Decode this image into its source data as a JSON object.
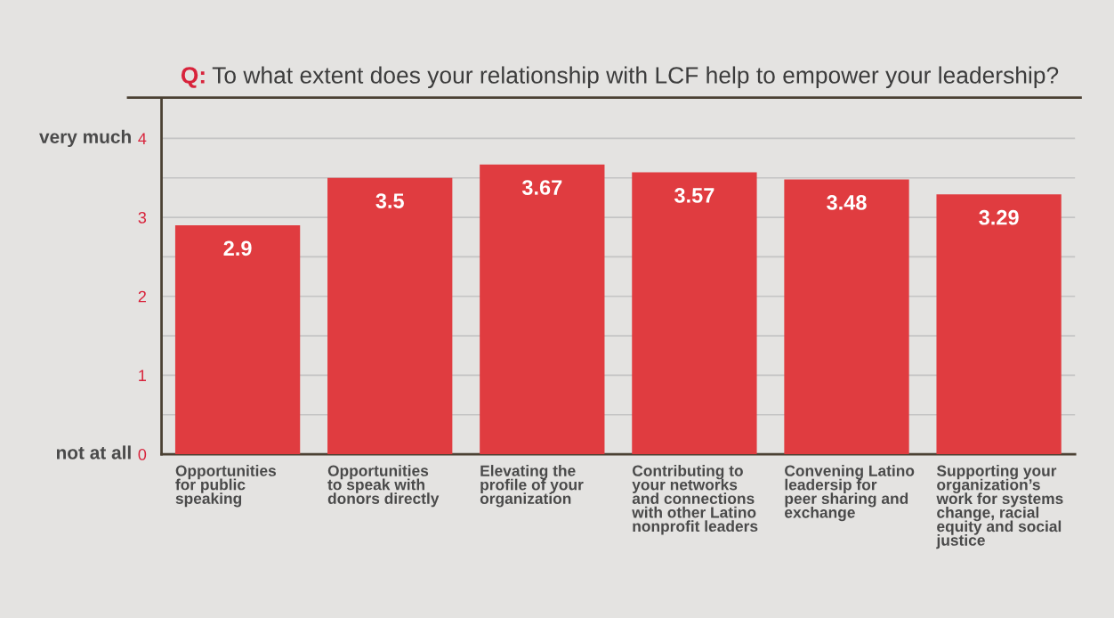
{
  "chart_data": {
    "type": "bar",
    "title": "Q: To what extent does your relationship with LCF help to empower your leadership?",
    "categories": [
      "Opportunities\nfor public\nspeaking",
      "Opportunities\nto speak with\ndonors directly",
      "Elevating the\nprofile of your\norganization",
      "Contributing to\nyour networks\nand connections\nwith other Latino\nnonprofit leaders",
      "Convening Latino\nleadersip for\npeer sharing and\nexchange",
      "Supporting your\norganization’s\nwork for systems\nchange, racial\nequity and social\njustice"
    ],
    "values": [
      2.9,
      3.5,
      3.67,
      3.57,
      3.48,
      3.29
    ],
    "color": "#e03c40",
    "data_labels": true,
    "ylim": [
      0,
      4.5
    ],
    "yticks": [
      0,
      {
        "value": 0.5,
        "label": null
      },
      1,
      {
        "value": 1.5,
        "label": null
      },
      2,
      {
        "value": 2.5,
        "label": null
      },
      3,
      {
        "value": 3.5,
        "label": null
      },
      4
    ],
    "grid": "y",
    "annotations": [
      "not at all",
      "very much"
    ]
  }
}
